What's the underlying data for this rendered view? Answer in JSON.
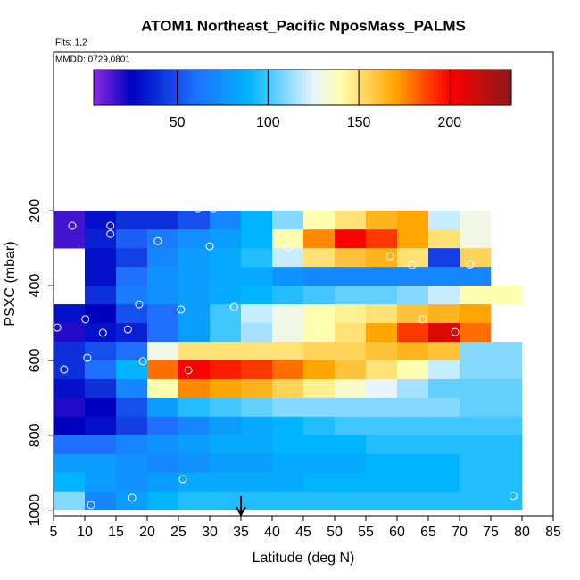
{
  "chart_data": {
    "type": "heatmap",
    "title": "ATOM1 Northeast_Pacific NposMass_PALMS",
    "subtitle": "Flts: 1,2",
    "annotation": "MMDD: 0729,0801",
    "x_label": "Latitude (deg N)",
    "y_label": "PSXC (mbar)",
    "xlim": [
      5,
      85
    ],
    "ylim": [
      1015,
      -225
    ],
    "xticks": [
      5,
      10,
      15,
      20,
      25,
      30,
      35,
      40,
      45,
      50,
      55,
      60,
      65,
      70,
      75,
      80,
      85
    ],
    "yticks": [
      200,
      400,
      600,
      800,
      1000
    ],
    "x_edges": [
      5,
      10,
      15,
      20,
      25,
      30,
      35,
      40,
      45,
      50,
      55,
      60,
      65,
      70,
      75,
      80
    ],
    "y_edges": [
      200,
      250,
      300,
      350,
      400,
      450,
      500,
      550,
      600,
      650,
      700,
      750,
      800,
      850,
      900,
      950,
      1000
    ],
    "z": [
      [
        15,
        30,
        40,
        40,
        50,
        70,
        90,
        110,
        140,
        150,
        165,
        170,
        120,
        130,
        null
      ],
      [
        15,
        35,
        55,
        65,
        75,
        80,
        90,
        140,
        175,
        200,
        190,
        170,
        150,
        130,
        null
      ],
      [
        null,
        30,
        45,
        70,
        80,
        85,
        95,
        120,
        150,
        160,
        165,
        150,
        45,
        155,
        null
      ],
      [
        null,
        30,
        60,
        75,
        80,
        85,
        85,
        75,
        70,
        70,
        70,
        70,
        70,
        70,
        null
      ],
      [
        null,
        40,
        65,
        75,
        80,
        85,
        90,
        95,
        100,
        105,
        105,
        110,
        120,
        140,
        140
      ],
      [
        30,
        25,
        50,
        60,
        80,
        100,
        120,
        130,
        140,
        145,
        150,
        160,
        165,
        170,
        null
      ],
      [
        20,
        30,
        35,
        60,
        80,
        100,
        115,
        130,
        140,
        150,
        170,
        190,
        210,
        180,
        null
      ],
      [
        40,
        50,
        60,
        130,
        150,
        150,
        150,
        150,
        155,
        155,
        160,
        165,
        160,
        110,
        110
      ],
      [
        40,
        60,
        90,
        180,
        200,
        195,
        190,
        180,
        170,
        160,
        150,
        140,
        120,
        110,
        110
      ],
      [
        30,
        40,
        70,
        140,
        175,
        170,
        165,
        155,
        145,
        135,
        125,
        115,
        105,
        105,
        105
      ],
      [
        20,
        25,
        50,
        80,
        95,
        100,
        105,
        110,
        110,
        110,
        110,
        110,
        110,
        105,
        105
      ],
      [
        25,
        30,
        45,
        60,
        70,
        80,
        85,
        90,
        95,
        100,
        100,
        100,
        100,
        100,
        100
      ],
      [
        60,
        60,
        70,
        75,
        80,
        85,
        85,
        90,
        90,
        90,
        95,
        95,
        95,
        95,
        95
      ],
      [
        80,
        80,
        75,
        70,
        75,
        80,
        80,
        85,
        85,
        85,
        90,
        90,
        90,
        95,
        95
      ],
      [
        90,
        80,
        75,
        80,
        85,
        85,
        85,
        85,
        90,
        90,
        90,
        90,
        90,
        95,
        95
      ],
      [
        110,
        70,
        80,
        90,
        95,
        95,
        95,
        95,
        95,
        95,
        95,
        95,
        95,
        95,
        95
      ]
    ],
    "colorbar_lim": [
      4,
      234
    ],
    "colorbar_ticks": [
      50,
      100,
      150,
      200
    ],
    "colorscale": [
      [
        4,
        "#8a2be2"
      ],
      [
        25,
        "#0000c0"
      ],
      [
        60,
        "#1e6fff"
      ],
      [
        90,
        "#00b4ff"
      ],
      [
        125,
        "#e8f4ff"
      ],
      [
        140,
        "#ffffb0"
      ],
      [
        170,
        "#ffa500"
      ],
      [
        200,
        "#ff0000"
      ],
      [
        234,
        "#8b1a1a"
      ]
    ],
    "points": {
      "color": "#ffffff",
      "x": [
        8,
        14.1,
        14.1,
        21.7,
        30,
        42.6,
        58.9,
        62.4,
        71.7,
        18.7,
        25.4,
        33.9,
        5.6,
        10.1,
        16.9,
        12.9,
        64.1,
        69.3,
        10.4,
        19.3,
        26.6,
        6.7,
        25.7,
        17.6,
        11,
        78.6,
        28.1,
        30.6
      ],
      "y": [
        240,
        240,
        262,
        281,
        295,
        298,
        321,
        345,
        343,
        450,
        464,
        457,
        512,
        490,
        517,
        526,
        490,
        524,
        593,
        602,
        626,
        624,
        917,
        967,
        986,
        962,
        195,
        195
      ]
    },
    "arrow_x": 35
  }
}
